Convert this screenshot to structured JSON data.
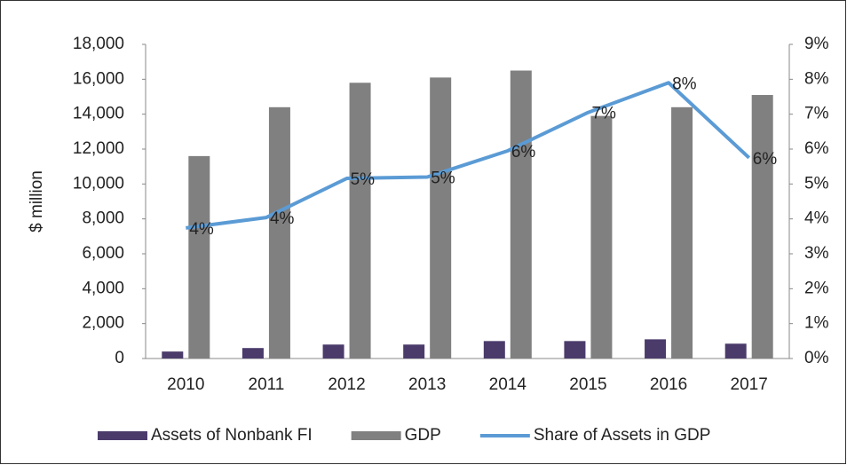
{
  "chart_data": {
    "type": "bar",
    "y_label": "$ million",
    "categories": [
      "2010",
      "2011",
      "2012",
      "2013",
      "2014",
      "2015",
      "2016",
      "2017"
    ],
    "series": [
      {
        "name": "Assets of Nonbank FI",
        "color": "#4b3b6b",
        "values": [
          400,
          600,
          800,
          800,
          1000,
          1000,
          1100,
          850
        ]
      },
      {
        "name": "GDP",
        "color": "#808080",
        "values": [
          11600,
          14400,
          15800,
          16100,
          16500,
          13900,
          14400,
          15100
        ]
      },
      {
        "name": "Share of Assets in GDP",
        "color": "#5b9bd5",
        "type": "line",
        "axis": "y2",
        "values": [
          3.74,
          4.04,
          5.16,
          5.2,
          5.95,
          7.05,
          7.9,
          5.75
        ],
        "value_labels": [
          "4%",
          "4%",
          "5%",
          "5%",
          "6%",
          "7%",
          "8%",
          "6%"
        ]
      }
    ],
    "ylim": [
      0,
      18000
    ],
    "yticks": [
      0,
      {
        "value": 2000,
        "label": "2,000"
      },
      {
        "value": 4000,
        "label": "4,000"
      },
      {
        "value": 6000,
        "label": "6,000"
      },
      {
        "value": 8000,
        "label": "8,000"
      },
      {
        "value": 10000,
        "label": "10,000"
      },
      {
        "value": 12000,
        "label": "12,000"
      },
      {
        "value": 14000,
        "label": "14,000"
      },
      {
        "value": 16000,
        "label": "16,000"
      },
      {
        "value": 18000,
        "label": "18,000"
      }
    ],
    "y2lim": [
      0,
      9
    ],
    "y2ticks": [
      {
        "value": 0,
        "label": "0%"
      },
      {
        "value": 1,
        "label": "1%"
      },
      {
        "value": 2,
        "label": "2%"
      },
      {
        "value": 3,
        "label": "3%"
      },
      {
        "value": 4,
        "label": "4%"
      },
      {
        "value": 5,
        "label": "5%"
      },
      {
        "value": 6,
        "label": "6%"
      },
      {
        "value": 7,
        "label": "7%"
      },
      {
        "value": 8,
        "label": "8%"
      },
      {
        "value": 9,
        "label": "9%"
      }
    ],
    "legend": "bottom"
  }
}
